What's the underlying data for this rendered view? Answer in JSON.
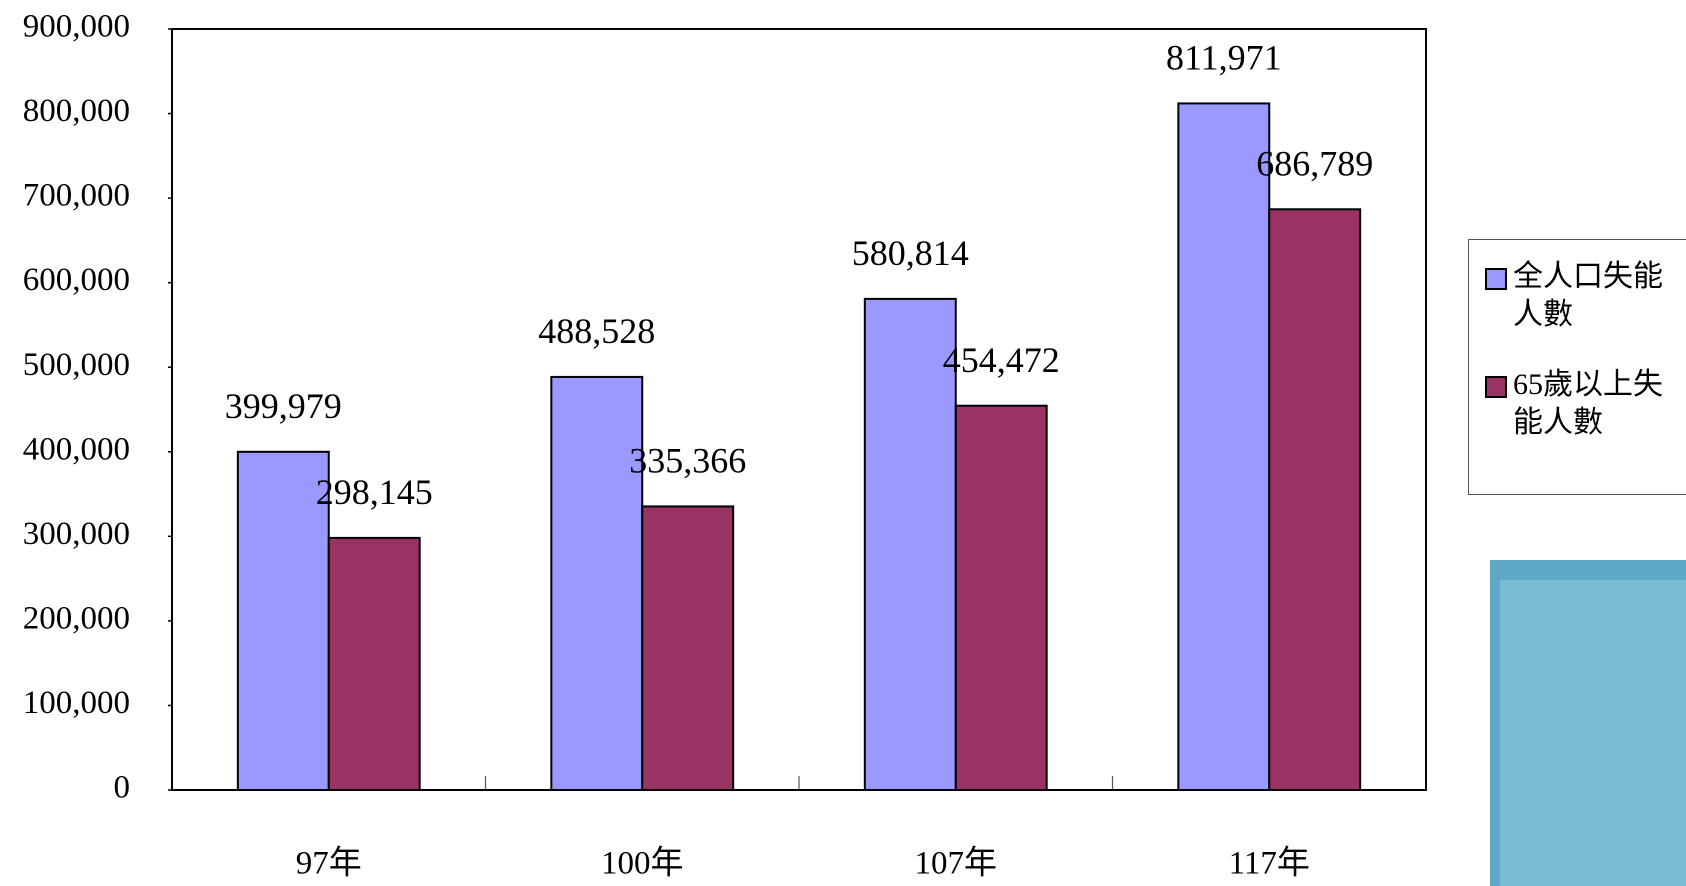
{
  "chart_data": {
    "type": "bar",
    "categories": [
      "97年",
      "100年",
      "107年",
      "117年"
    ],
    "series": [
      {
        "name": "全人口失能人數",
        "color": "#9999ff",
        "values": [
          399979,
          488528,
          580814,
          811971
        ],
        "value_labels": [
          "399,979",
          "488,528",
          "580,814",
          "811,971"
        ]
      },
      {
        "name": "65歲以上失能人數",
        "color": "#993366",
        "values": [
          298145,
          335366,
          454472,
          686789
        ],
        "value_labels": [
          "298,145",
          "335,366",
          "454,472",
          "686,789"
        ]
      }
    ],
    "ylim": [
      0,
      900000
    ],
    "yticks": [
      0,
      {
        "value": 100000,
        "label": "100,000"
      },
      {
        "value": 200000,
        "label": "200,000"
      },
      {
        "value": 300000,
        "label": "300,000"
      },
      {
        "value": 400000,
        "label": "400,000"
      },
      {
        "value": 500000,
        "label": "500,000"
      },
      {
        "value": 600000,
        "label": "600,000"
      },
      {
        "value": 700000,
        "label": "700,000"
      },
      {
        "value": 800000,
        "label": "800,000"
      },
      {
        "value": 900000,
        "label": "900,000"
      }
    ],
    "legend": "right"
  }
}
